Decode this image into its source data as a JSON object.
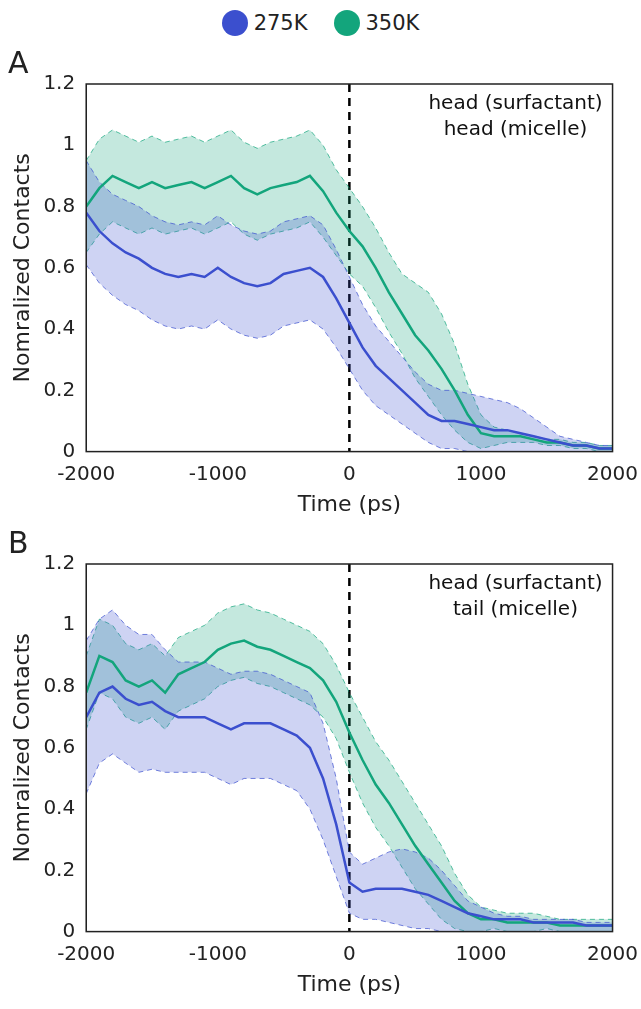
{
  "chart_data": [
    {
      "type": "line",
      "panel": "A",
      "annotation": [
        "head (surfactant)",
        "head (micelle)"
      ],
      "x_label": "Time (ps)",
      "y_label": "Nomralized Contacts",
      "xlim": [
        -2000,
        2000
      ],
      "xticks": [
        -2000,
        -1000,
        0,
        1000,
        2000
      ],
      "ylim": [
        0,
        1.2
      ],
      "yticks": [
        0,
        0.2,
        0.4,
        0.6,
        0.8,
        1,
        1.2
      ],
      "grid": false,
      "legend": "top",
      "vlines": [
        0
      ],
      "x": [
        -2000,
        -1900,
        -1800,
        -1700,
        -1600,
        -1500,
        -1400,
        -1300,
        -1200,
        -1100,
        -1000,
        -900,
        -800,
        -700,
        -600,
        -500,
        -400,
        -300,
        -200,
        -100,
        0,
        100,
        200,
        300,
        400,
        500,
        600,
        700,
        800,
        900,
        1000,
        1100,
        1200,
        1300,
        1400,
        1500,
        1600,
        1700,
        1800,
        1900,
        2000
      ],
      "series": [
        {
          "name": "275K",
          "color": "#3b4fce",
          "values": [
            0.78,
            0.72,
            0.68,
            0.65,
            0.63,
            0.6,
            0.58,
            0.57,
            0.58,
            0.57,
            0.6,
            0.57,
            0.55,
            0.54,
            0.55,
            0.58,
            0.59,
            0.6,
            0.57,
            0.5,
            0.42,
            0.34,
            0.28,
            0.24,
            0.2,
            0.16,
            0.12,
            0.1,
            0.1,
            0.09,
            0.08,
            0.07,
            0.07,
            0.06,
            0.05,
            0.04,
            0.03,
            0.02,
            0.02,
            0.01,
            0.01
          ],
          "upper": [
            0.95,
            0.88,
            0.84,
            0.82,
            0.8,
            0.77,
            0.75,
            0.74,
            0.75,
            0.74,
            0.77,
            0.74,
            0.72,
            0.71,
            0.72,
            0.75,
            0.76,
            0.77,
            0.74,
            0.66,
            0.57,
            0.48,
            0.41,
            0.36,
            0.31,
            0.26,
            0.22,
            0.2,
            0.2,
            0.19,
            0.18,
            0.17,
            0.16,
            0.14,
            0.11,
            0.08,
            0.05,
            0.04,
            0.03,
            0.02,
            0.02
          ],
          "lower": [
            0.61,
            0.55,
            0.51,
            0.48,
            0.46,
            0.43,
            0.41,
            0.4,
            0.41,
            0.4,
            0.43,
            0.4,
            0.38,
            0.37,
            0.38,
            0.41,
            0.42,
            0.43,
            0.4,
            0.34,
            0.27,
            0.2,
            0.15,
            0.12,
            0.09,
            0.06,
            0.03,
            0.01,
            0.01,
            0,
            0,
            0,
            0,
            0,
            0,
            0,
            0,
            0,
            0,
            0,
            0
          ]
        },
        {
          "name": "350K",
          "color": "#13a57c",
          "values": [
            0.8,
            0.86,
            0.9,
            0.88,
            0.86,
            0.88,
            0.86,
            0.87,
            0.88,
            0.86,
            0.88,
            0.9,
            0.86,
            0.84,
            0.86,
            0.87,
            0.88,
            0.9,
            0.85,
            0.78,
            0.72,
            0.67,
            0.6,
            0.52,
            0.45,
            0.38,
            0.33,
            0.27,
            0.2,
            0.12,
            0.06,
            0.05,
            0.05,
            0.05,
            0.04,
            0.03,
            0.03,
            0.02,
            0.02,
            0.01,
            0.01
          ],
          "upper": [
            0.95,
            1.02,
            1.05,
            1.03,
            1.01,
            1.03,
            1.01,
            1.02,
            1.03,
            1.01,
            1.03,
            1.05,
            1.01,
            0.99,
            1.01,
            1.02,
            1.03,
            1.05,
            1.0,
            0.92,
            0.86,
            0.8,
            0.73,
            0.65,
            0.58,
            0.55,
            0.52,
            0.45,
            0.35,
            0.22,
            0.12,
            0.08,
            0.07,
            0.06,
            0.05,
            0.04,
            0.04,
            0.03,
            0.03,
            0.02,
            0.02
          ],
          "lower": [
            0.65,
            0.71,
            0.75,
            0.73,
            0.71,
            0.73,
            0.71,
            0.72,
            0.73,
            0.71,
            0.73,
            0.75,
            0.71,
            0.69,
            0.71,
            0.72,
            0.73,
            0.75,
            0.7,
            0.64,
            0.58,
            0.54,
            0.47,
            0.39,
            0.32,
            0.24,
            0.18,
            0.12,
            0.07,
            0.03,
            0.01,
            0.02,
            0.03,
            0.03,
            0.03,
            0.02,
            0.02,
            0.01,
            0.01,
            0,
            0
          ]
        }
      ]
    },
    {
      "type": "line",
      "panel": "B",
      "annotation": [
        "head (surfactant)",
        "tail (micelle)"
      ],
      "x_label": "Time (ps)",
      "y_label": "Nomralized Contacts",
      "xlim": [
        -2000,
        2000
      ],
      "xticks": [
        -2000,
        -1000,
        0,
        1000,
        2000
      ],
      "ylim": [
        0,
        1.2
      ],
      "yticks": [
        0,
        0.2,
        0.4,
        0.6,
        0.8,
        1,
        1.2
      ],
      "grid": false,
      "vlines": [
        0
      ],
      "x": [
        -2000,
        -1900,
        -1800,
        -1700,
        -1600,
        -1500,
        -1400,
        -1300,
        -1200,
        -1100,
        -1000,
        -900,
        -800,
        -700,
        -600,
        -500,
        -400,
        -300,
        -200,
        -100,
        0,
        100,
        200,
        300,
        400,
        500,
        600,
        700,
        800,
        900,
        1000,
        1100,
        1200,
        1300,
        1400,
        1500,
        1600,
        1700,
        1800,
        1900,
        2000
      ],
      "series": [
        {
          "name": "275K",
          "color": "#3b4fce",
          "values": [
            0.7,
            0.78,
            0.8,
            0.76,
            0.74,
            0.75,
            0.72,
            0.7,
            0.7,
            0.7,
            0.68,
            0.66,
            0.68,
            0.68,
            0.68,
            0.66,
            0.64,
            0.6,
            0.5,
            0.35,
            0.16,
            0.13,
            0.14,
            0.14,
            0.14,
            0.13,
            0.12,
            0.1,
            0.08,
            0.06,
            0.05,
            0.04,
            0.04,
            0.04,
            0.03,
            0.03,
            0.03,
            0.03,
            0.02,
            0.02,
            0.02
          ],
          "upper": [
            0.95,
            1.02,
            1.05,
            1.0,
            0.97,
            0.97,
            0.92,
            0.88,
            0.88,
            0.88,
            0.86,
            0.84,
            0.85,
            0.85,
            0.84,
            0.82,
            0.8,
            0.78,
            0.68,
            0.5,
            0.26,
            0.22,
            0.24,
            0.26,
            0.27,
            0.26,
            0.24,
            0.2,
            0.15,
            0.1,
            0.08,
            0.06,
            0.05,
            0.05,
            0.04,
            0.04,
            0.04,
            0.04,
            0.03,
            0.03,
            0.03
          ],
          "lower": [
            0.45,
            0.55,
            0.58,
            0.55,
            0.52,
            0.53,
            0.52,
            0.52,
            0.52,
            0.52,
            0.5,
            0.48,
            0.5,
            0.5,
            0.5,
            0.48,
            0.46,
            0.4,
            0.3,
            0.18,
            0.06,
            0.04,
            0.04,
            0.03,
            0.02,
            0.01,
            0.01,
            0,
            0,
            0,
            0,
            0,
            0,
            0,
            0,
            0,
            0,
            0,
            0,
            0,
            0
          ]
        },
        {
          "name": "350K",
          "color": "#13a57c",
          "values": [
            0.78,
            0.9,
            0.88,
            0.82,
            0.8,
            0.82,
            0.78,
            0.84,
            0.86,
            0.88,
            0.92,
            0.94,
            0.95,
            0.93,
            0.92,
            0.9,
            0.88,
            0.86,
            0.82,
            0.75,
            0.65,
            0.56,
            0.48,
            0.42,
            0.35,
            0.28,
            0.22,
            0.16,
            0.1,
            0.06,
            0.04,
            0.04,
            0.03,
            0.03,
            0.03,
            0.03,
            0.02,
            0.02,
            0.02,
            0.02,
            0.02
          ],
          "upper": [
            0.9,
            1.02,
            1.0,
            0.94,
            0.92,
            0.94,
            0.9,
            0.96,
            0.98,
            1.0,
            1.04,
            1.06,
            1.07,
            1.05,
            1.04,
            1.02,
            1.0,
            0.98,
            0.94,
            0.87,
            0.78,
            0.7,
            0.62,
            0.56,
            0.49,
            0.42,
            0.35,
            0.28,
            0.19,
            0.12,
            0.08,
            0.07,
            0.06,
            0.06,
            0.06,
            0.05,
            0.04,
            0.04,
            0.04,
            0.04,
            0.04
          ],
          "lower": [
            0.66,
            0.78,
            0.76,
            0.7,
            0.68,
            0.7,
            0.66,
            0.72,
            0.74,
            0.76,
            0.8,
            0.82,
            0.83,
            0.81,
            0.8,
            0.78,
            0.76,
            0.74,
            0.7,
            0.63,
            0.52,
            0.42,
            0.34,
            0.28,
            0.21,
            0.14,
            0.09,
            0.04,
            0.01,
            0,
            0,
            0.01,
            0,
            0,
            0,
            0.01,
            0,
            0,
            0,
            0,
            0
          ]
        }
      ]
    }
  ]
}
